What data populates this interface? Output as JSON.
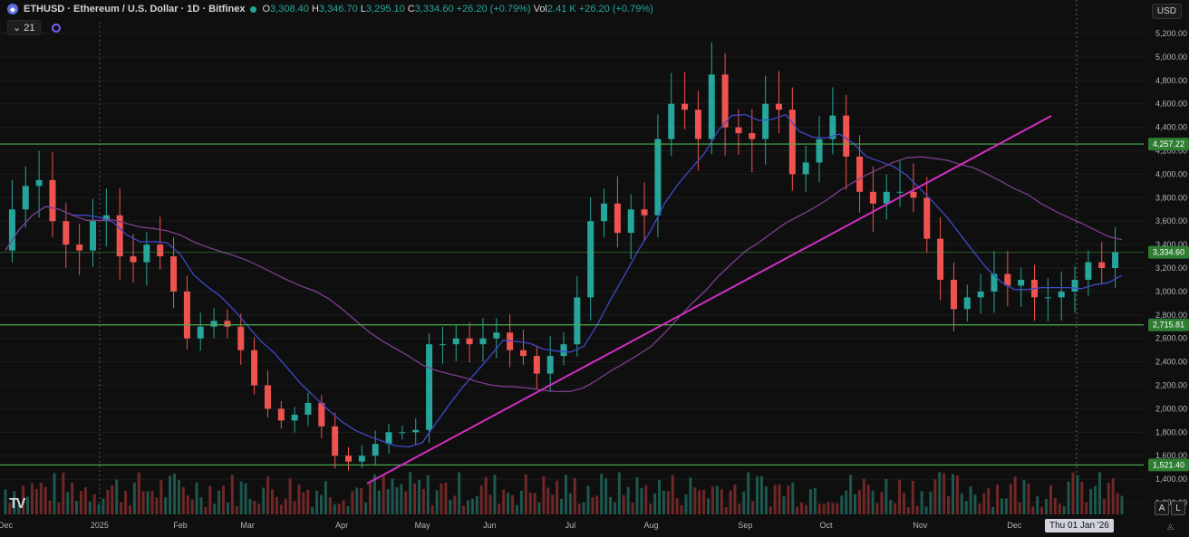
{
  "header": {
    "symbol_title": "ETHUSD · Ethereum / U.S. Dollar · 1D · Bitfinex",
    "o_label": "O",
    "o_value": "3,308.40",
    "h_label": "H",
    "h_value": "3,346.70",
    "l_label": "L",
    "l_value": "3,295.10",
    "c_label": "C",
    "c_value": "3,334.60",
    "change": "+26.20 (+0.79%)",
    "vol_label": "Vol",
    "vol_value": "2.41 K",
    "vol_change": "+26.20 (+0.79%)",
    "indicator_count": "21",
    "currency": "USD"
  },
  "footer": {
    "logo": "TV",
    "date_tooltip": "Thu 01 Jan '26",
    "btn_a": "A",
    "btn_l": "L"
  },
  "colors": {
    "up": "#26a69a",
    "down": "#ef5350",
    "level": "#4caf50",
    "trendline": "#d12ec1",
    "ma_fast": "#3f49c9",
    "ma_slow": "#7b3f8c"
  },
  "chart_data": {
    "type": "candlestick",
    "title": "ETHUSD · Ethereum / U.S. Dollar · 1D · Bitfinex",
    "ylim": [
      1100,
      5300
    ],
    "y_ticks": [
      1200,
      1400,
      1600,
      1800,
      2000,
      2200,
      2400,
      2600,
      2800,
      3000,
      3200,
      3400,
      3600,
      3800,
      4000,
      4200,
      4400,
      4600,
      4800,
      5000,
      5200
    ],
    "x_ticks": [
      "Dec",
      "2025",
      "Feb",
      "Mar",
      "Apr",
      "May",
      "Jun",
      "Jul",
      "Aug",
      "Sep",
      "Oct",
      "Nov",
      "Dec"
    ],
    "price_series": [
      [
        "Dec",
        3350
      ],
      [
        "",
        3700
      ],
      [
        "",
        3900
      ],
      [
        "",
        3950
      ],
      [
        "",
        3600
      ],
      [
        "",
        3400
      ],
      [
        "",
        3350
      ],
      [
        "2025",
        3600
      ],
      [
        "",
        3650
      ],
      [
        "",
        3300
      ],
      [
        "",
        3250
      ],
      [
        "",
        3400
      ],
      [
        "",
        3300
      ],
      [
        "Feb",
        3000
      ],
      [
        "",
        2600
      ],
      [
        "",
        2700
      ],
      [
        "",
        2750
      ],
      [
        "",
        2700
      ],
      [
        "Mar",
        2500
      ],
      [
        "",
        2200
      ],
      [
        "",
        2000
      ],
      [
        "",
        1900
      ],
      [
        "",
        1950
      ],
      [
        "",
        2050
      ],
      [
        "",
        1850
      ],
      [
        "Apr",
        1600
      ],
      [
        "",
        1550
      ],
      [
        "",
        1600
      ],
      [
        "",
        1700
      ],
      [
        "",
        1800
      ],
      [
        "",
        1800
      ],
      [
        "May",
        1820
      ],
      [
        "",
        2550
      ],
      [
        "",
        2550
      ],
      [
        "",
        2600
      ],
      [
        "",
        2550
      ],
      [
        "Jun",
        2600
      ],
      [
        "",
        2650
      ],
      [
        "",
        2500
      ],
      [
        "",
        2450
      ],
      [
        "",
        2300
      ],
      [
        "",
        2450
      ],
      [
        "Jul",
        2550
      ],
      [
        "",
        2950
      ],
      [
        "",
        3600
      ],
      [
        "",
        3750
      ],
      [
        "",
        3500
      ],
      [
        "",
        3700
      ],
      [
        "Aug",
        3650
      ],
      [
        "",
        4300
      ],
      [
        "",
        4600
      ],
      [
        "",
        4550
      ],
      [
        "",
        4300
      ],
      [
        "",
        4850
      ],
      [
        "",
        4400
      ],
      [
        "Sep",
        4350
      ],
      [
        "",
        4300
      ],
      [
        "",
        4600
      ],
      [
        "",
        4550
      ],
      [
        "",
        4000
      ],
      [
        "",
        4100
      ],
      [
        "Oct",
        4300
      ],
      [
        "",
        4500
      ],
      [
        "",
        4150
      ],
      [
        "",
        3850
      ],
      [
        "",
        3750
      ],
      [
        "",
        3850
      ],
      [
        "",
        3850
      ],
      [
        "Nov",
        3800
      ],
      [
        "",
        3450
      ],
      [
        "",
        3100
      ],
      [
        "",
        2850
      ],
      [
        "",
        2950
      ],
      [
        "",
        3000
      ],
      [
        "",
        3150
      ],
      [
        "Dec",
        3050
      ],
      [
        "",
        3100
      ],
      [
        "",
        2950
      ],
      [
        "",
        2950
      ],
      [
        "",
        3000
      ],
      [
        "",
        3100
      ],
      [
        "",
        3250
      ],
      [
        "",
        3200
      ],
      [
        "",
        3334.6
      ]
    ],
    "levels": [
      4257.22,
      3334.6,
      2715.81,
      1521.4
    ],
    "level_labels": [
      "4,257.22",
      "3,334.60",
      "2,715.81",
      "1,521.40"
    ]
  }
}
